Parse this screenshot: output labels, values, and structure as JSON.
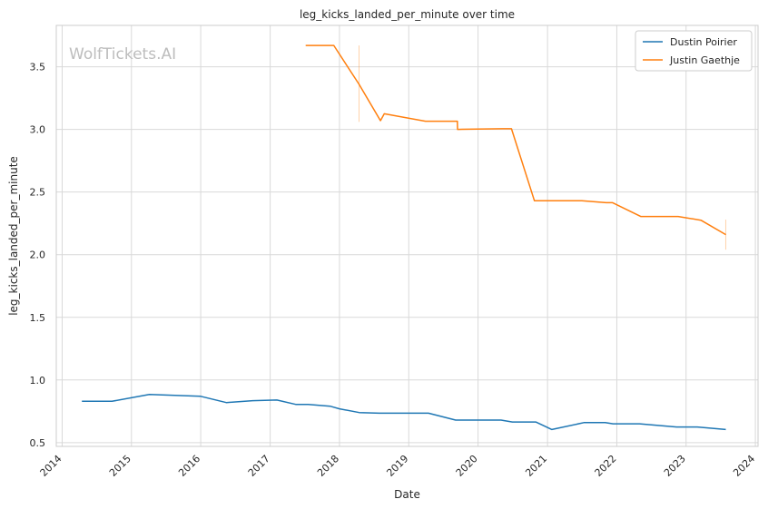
{
  "watermark": "WolfTickets.AI",
  "chart_data": {
    "type": "line",
    "title": "leg_kicks_landed_per_minute over time",
    "xlabel": "Date",
    "ylabel": "leg_kicks_landed_per_minute",
    "xlim": [
      "2013-12-01",
      "2024-01-15"
    ],
    "ylim": [
      0.47,
      3.83
    ],
    "x_ticks": [
      "2014",
      "2015",
      "2016",
      "2017",
      "2018",
      "2019",
      "2020",
      "2021",
      "2022",
      "2023",
      "2024"
    ],
    "y_ticks": [
      "0.5",
      "1.0",
      "1.5",
      "2.0",
      "2.5",
      "3.0",
      "3.5"
    ],
    "grid": true,
    "legend_position": "top-right",
    "series": [
      {
        "name": "Dustin Poirier",
        "color": "#1f77b4",
        "points": [
          [
            "2014-04-15",
            0.83
          ],
          [
            "2014-09-20",
            0.83
          ],
          [
            "2015-04-05",
            0.885
          ],
          [
            "2016-01-01",
            0.87
          ],
          [
            "2016-05-15",
            0.82
          ],
          [
            "2016-10-01",
            0.835
          ],
          [
            "2017-02-05",
            0.84
          ],
          [
            "2017-05-15",
            0.805
          ],
          [
            "2017-07-20",
            0.805
          ],
          [
            "2017-11-15",
            0.79
          ],
          [
            "2018-01-01",
            0.77
          ],
          [
            "2018-04-15",
            0.74
          ],
          [
            "2018-07-30",
            0.735
          ],
          [
            "2019-04-15",
            0.735
          ],
          [
            "2019-09-05",
            0.68
          ],
          [
            "2020-05-01",
            0.68
          ],
          [
            "2020-06-30",
            0.665
          ],
          [
            "2020-10-31",
            0.665
          ],
          [
            "2021-01-24",
            0.605
          ],
          [
            "2021-07-11",
            0.66
          ],
          [
            "2021-11-01",
            0.66
          ],
          [
            "2021-12-12",
            0.65
          ],
          [
            "2022-05-01",
            0.65
          ],
          [
            "2022-11-12",
            0.625
          ],
          [
            "2023-03-01",
            0.625
          ],
          [
            "2023-07-29",
            0.605
          ]
        ]
      },
      {
        "name": "Justin Gaethje",
        "color": "#ff7f0e",
        "points": [
          [
            "2017-07-07",
            3.67
          ],
          [
            "2017-12-02",
            3.67
          ],
          [
            "2018-04-14",
            3.36
          ],
          [
            "2018-08-05",
            3.07
          ],
          [
            "2018-08-25",
            3.125
          ],
          [
            "2019-03-30",
            3.065
          ],
          [
            "2019-09-14",
            3.065
          ],
          [
            "2019-09-15",
            3.0
          ],
          [
            "2020-05-09",
            3.005
          ],
          [
            "2020-06-25",
            3.005
          ],
          [
            "2020-10-24",
            2.43
          ],
          [
            "2021-07-01",
            2.43
          ],
          [
            "2021-11-06",
            2.415
          ],
          [
            "2021-12-10",
            2.415
          ],
          [
            "2022-05-07",
            2.305
          ],
          [
            "2022-11-20",
            2.305
          ],
          [
            "2023-03-20",
            2.275
          ],
          [
            "2023-07-29",
            2.16
          ]
        ],
        "error_bars": [
          {
            "x": "2018-04-14",
            "low": 3.06,
            "high": 3.67
          },
          {
            "x": "2023-07-29",
            "low": 2.04,
            "high": 2.28
          }
        ]
      }
    ]
  }
}
